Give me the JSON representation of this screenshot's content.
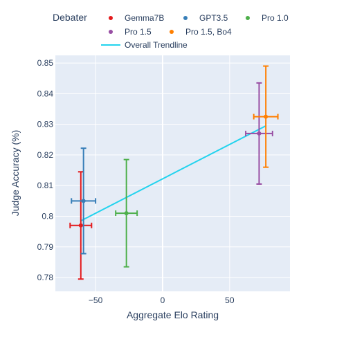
{
  "chart_data": {
    "type": "scatter",
    "xlabel": "Aggregate Elo Rating",
    "ylabel": "Judge Accuracy (%)",
    "xlim": [
      -80,
      95
    ],
    "ylim": [
      0.7755,
      0.8525
    ],
    "x_ticks": [
      -50,
      0,
      50
    ],
    "x_tick_labels": [
      "−50",
      "0",
      "50"
    ],
    "y_ticks": [
      0.78,
      0.79,
      0.8,
      0.81,
      0.82,
      0.83,
      0.84,
      0.85
    ],
    "y_tick_labels": [
      "0.78",
      "0.79",
      "0.8",
      "0.81",
      "0.82",
      "0.83",
      "0.84",
      "0.85"
    ],
    "grid": true,
    "legend_title": "Debater",
    "legend_position": "top",
    "series": [
      {
        "name": "Gemma7B",
        "color": "#e41a1c",
        "x": -61,
        "y": 0.797,
        "x_err": 8,
        "y_err": 0.0175
      },
      {
        "name": "GPT3.5",
        "color": "#377eb8",
        "x": -59,
        "y": 0.805,
        "x_err": 9,
        "y_err": 0.0172
      },
      {
        "name": "Pro 1.0",
        "color": "#4daf4a",
        "x": -27,
        "y": 0.801,
        "x_err": 8,
        "y_err": 0.0175
      },
      {
        "name": "Pro 1.5",
        "color": "#984ea3",
        "x": 72,
        "y": 0.827,
        "x_err": 10,
        "y_err": 0.0165
      },
      {
        "name": "Pro 1.5, Bo4",
        "color": "#ff7f00",
        "x": 77,
        "y": 0.8325,
        "x_err": 9,
        "y_err": 0.0165
      }
    ],
    "trendline": {
      "name": "Overall Trendline",
      "color": "#22d3ee",
      "x": [
        -61,
        77
      ],
      "y": [
        0.7985,
        0.8295
      ]
    }
  }
}
